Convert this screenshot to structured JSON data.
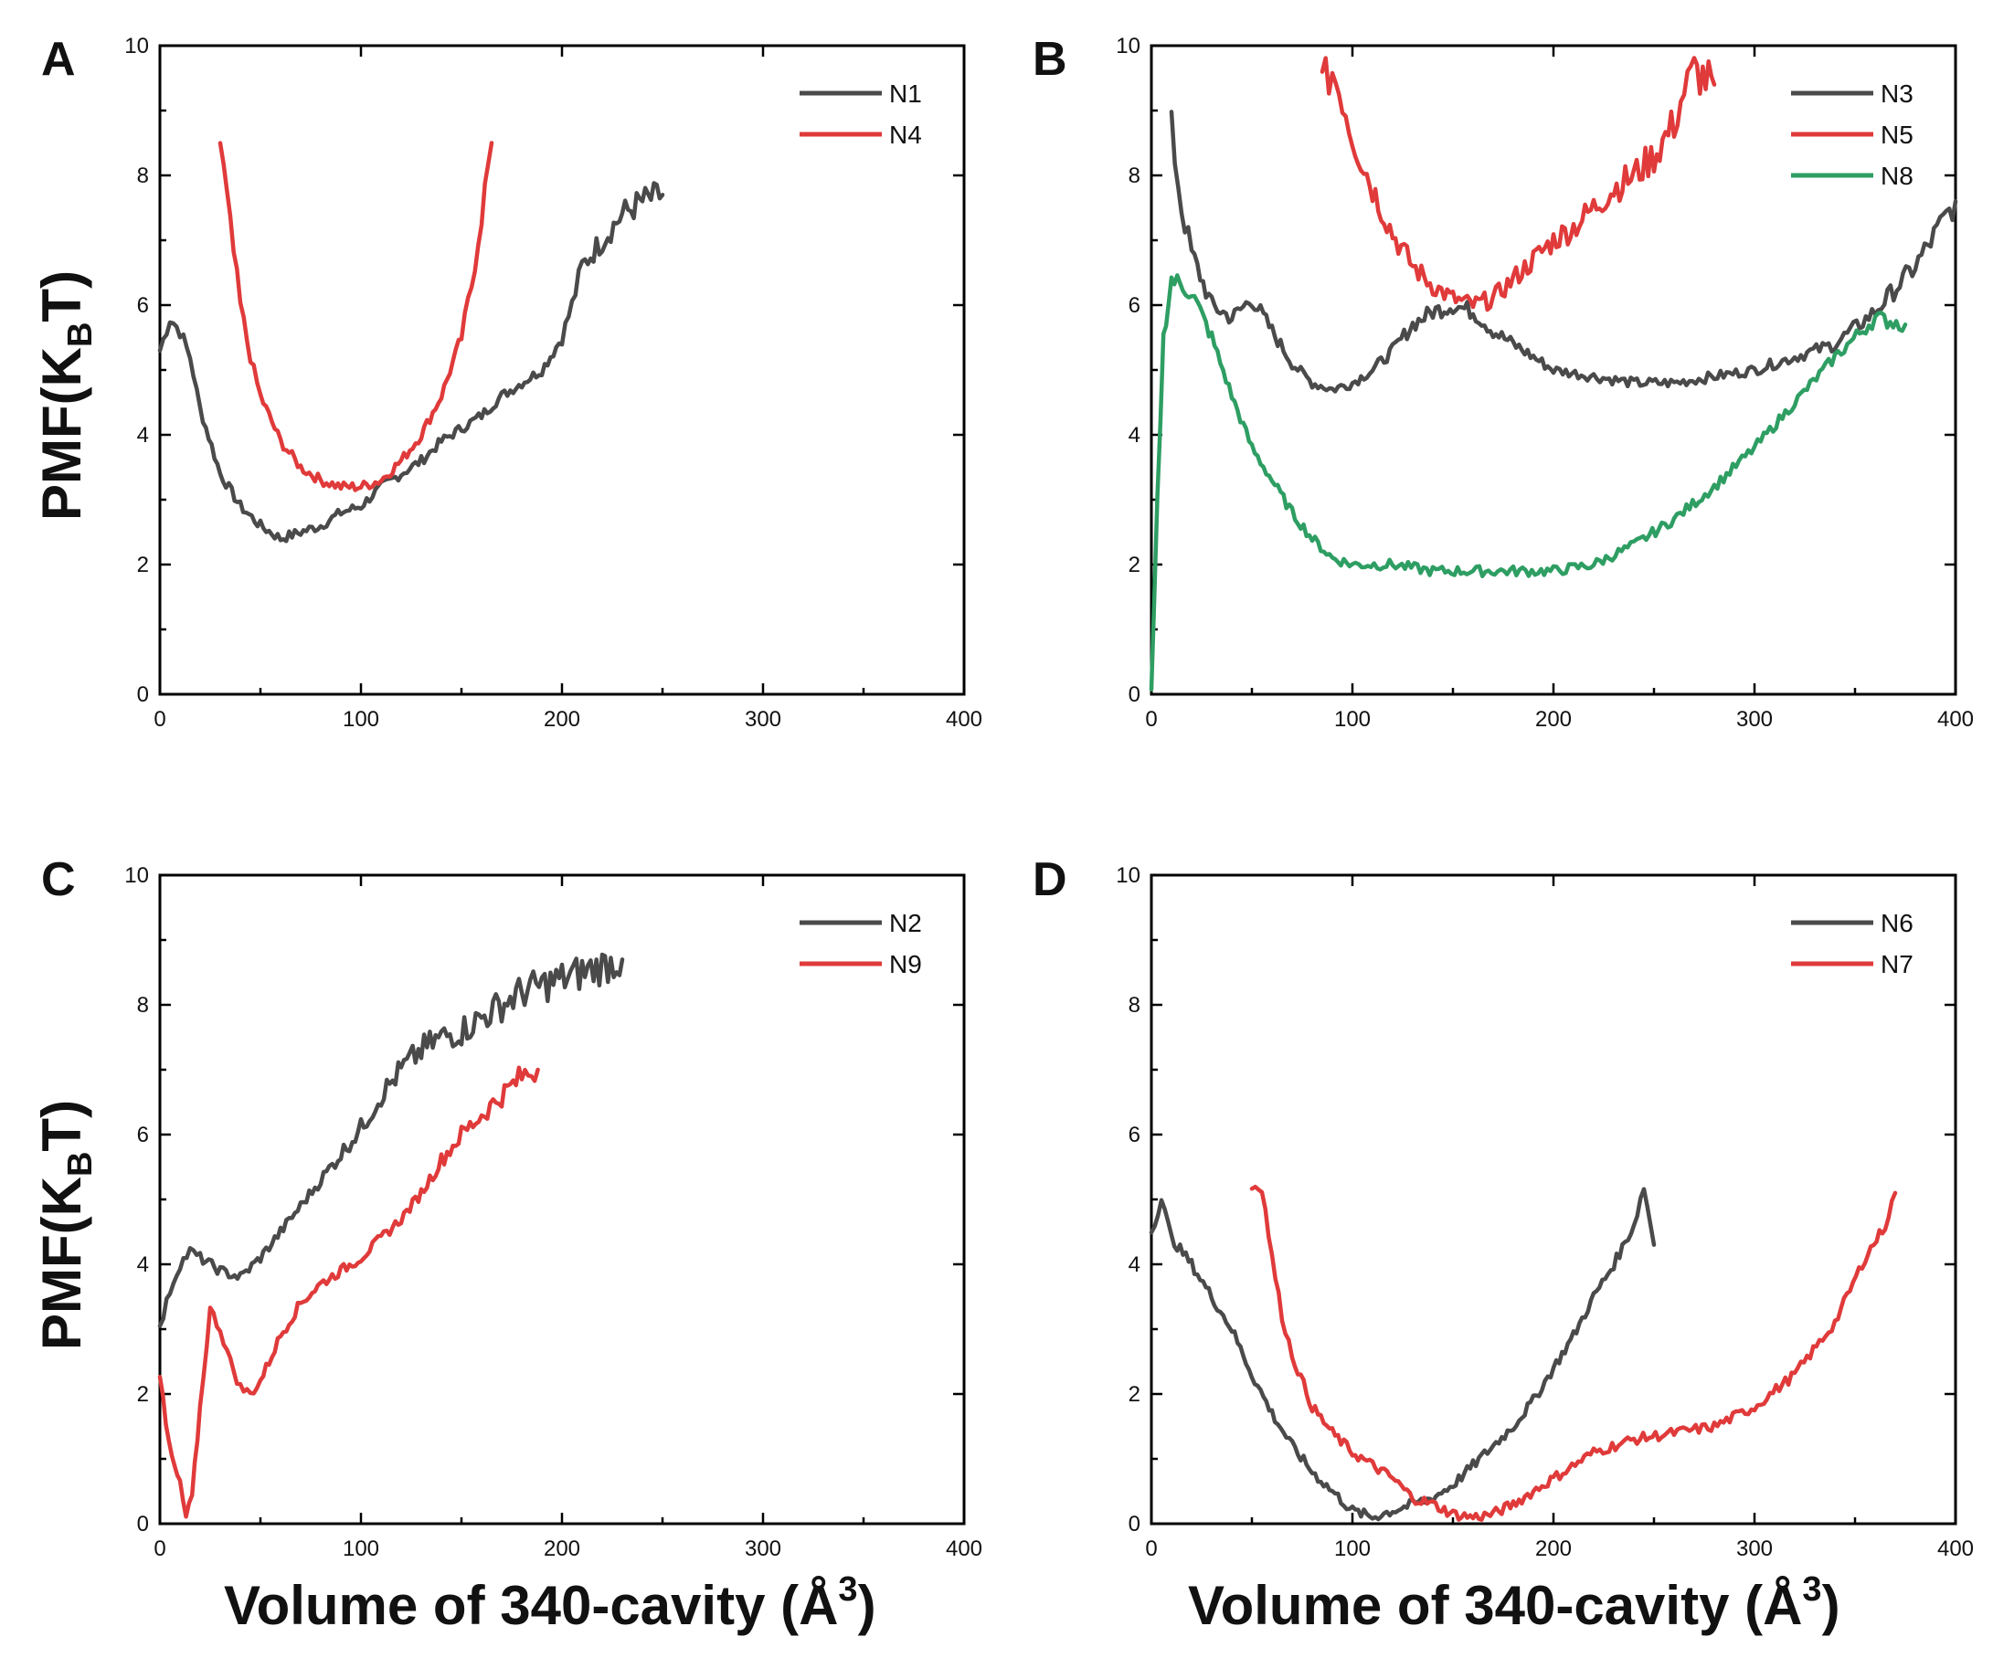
{
  "figure": {
    "ylabel_main": "PMF(K",
    "ylabel_sub": "B",
    "ylabel_end": "T)",
    "xlabel_main": "Volume of 340-cavity (Å",
    "xlabel_sup": "3",
    "xlabel_end": ")"
  },
  "colors": {
    "N1": "#4a4a4a",
    "N2": "#4a4a4a",
    "N3": "#4a4a4a",
    "N6": "#4a4a4a",
    "red": "#e03a3a",
    "green": "#2e9e63"
  },
  "chart_data": [
    {
      "panel": "A",
      "type": "line",
      "xlim": [
        0,
        400
      ],
      "ylim": [
        0,
        10
      ],
      "xticks": [
        0,
        100,
        200,
        300,
        400
      ],
      "yticks": [
        0,
        2,
        4,
        6,
        8,
        10
      ],
      "legend": "top-right",
      "series": [
        {
          "name": "N1",
          "color": "#4a4a4a",
          "x": [
            0,
            5,
            10,
            15,
            20,
            30,
            40,
            50,
            60,
            70,
            80,
            90,
            100,
            110,
            120,
            130,
            140,
            150,
            160,
            170,
            180,
            190,
            200,
            205,
            210,
            220,
            230,
            240,
            250
          ],
          "y": [
            5.3,
            5.8,
            5.6,
            5.2,
            4.4,
            3.4,
            2.9,
            2.6,
            2.4,
            2.5,
            2.6,
            2.8,
            2.9,
            3.2,
            3.4,
            3.6,
            3.9,
            4.1,
            4.3,
            4.6,
            4.8,
            5.0,
            5.5,
            6.0,
            6.6,
            7.0,
            7.4,
            7.6,
            7.7
          ]
        },
        {
          "name": "N4",
          "color": "#e03a3a",
          "x": [
            30,
            35,
            40,
            45,
            50,
            60,
            70,
            80,
            90,
            100,
            110,
            120,
            130,
            140,
            150,
            155,
            160,
            165
          ],
          "y": [
            8.5,
            7.2,
            6.0,
            5.2,
            4.6,
            3.9,
            3.5,
            3.3,
            3.2,
            3.2,
            3.3,
            3.6,
            4.0,
            4.6,
            5.5,
            6.3,
            7.4,
            8.5
          ]
        }
      ]
    },
    {
      "panel": "B",
      "type": "line",
      "xlim": [
        0,
        400
      ],
      "ylim": [
        0,
        10
      ],
      "xticks": [
        0,
        100,
        200,
        300,
        400
      ],
      "yticks": [
        0,
        2,
        4,
        6,
        8,
        10
      ],
      "legend": "top-right",
      "series": [
        {
          "name": "N3",
          "color": "#4a4a4a",
          "x": [
            10,
            15,
            20,
            30,
            40,
            50,
            60,
            70,
            80,
            90,
            100,
            110,
            120,
            130,
            140,
            150,
            160,
            170,
            180,
            190,
            200,
            220,
            240,
            260,
            280,
            300,
            320,
            340,
            360,
            380,
            400
          ],
          "y": [
            8.7,
            7.5,
            6.8,
            6.0,
            5.8,
            6.1,
            5.6,
            5.1,
            4.8,
            4.7,
            4.8,
            5.0,
            5.3,
            5.7,
            5.9,
            6.0,
            5.9,
            5.6,
            5.4,
            5.2,
            5.0,
            4.9,
            4.8,
            4.8,
            4.9,
            5.0,
            5.2,
            5.4,
            5.9,
            6.6,
            7.6
          ]
        },
        {
          "name": "N5",
          "color": "#e03a3a",
          "x": [
            85,
            90,
            95,
            100,
            110,
            120,
            130,
            140,
            150,
            160,
            170,
            180,
            190,
            200,
            210,
            220,
            230,
            240,
            250,
            260,
            265,
            270,
            280
          ],
          "y": [
            9.4,
            9.6,
            9.2,
            8.6,
            7.8,
            7.1,
            6.6,
            6.3,
            6.1,
            6.0,
            6.1,
            6.4,
            6.7,
            7.0,
            7.2,
            7.5,
            7.8,
            8.0,
            8.3,
            8.8,
            9.3,
            9.6,
            9.4
          ]
        },
        {
          "name": "N8",
          "color": "#2e9e63",
          "x": [
            0,
            3,
            6,
            10,
            20,
            30,
            40,
            50,
            60,
            70,
            80,
            90,
            100,
            120,
            140,
            160,
            180,
            200,
            220,
            240,
            260,
            280,
            300,
            320,
            340,
            360,
            375
          ],
          "y": [
            0.0,
            3.0,
            5.5,
            6.4,
            6.2,
            5.5,
            4.6,
            3.8,
            3.3,
            2.8,
            2.4,
            2.1,
            2.0,
            2.0,
            1.9,
            1.9,
            1.9,
            1.9,
            2.0,
            2.3,
            2.7,
            3.2,
            3.8,
            4.5,
            5.2,
            5.8,
            5.7
          ]
        }
      ]
    },
    {
      "panel": "C",
      "type": "line",
      "xlim": [
        0,
        400
      ],
      "ylim": [
        0,
        10
      ],
      "xticks": [
        0,
        100,
        200,
        300,
        400
      ],
      "yticks": [
        0,
        2,
        4,
        6,
        8,
        10
      ],
      "legend": "top-right",
      "series": [
        {
          "name": "N2",
          "color": "#4a4a4a",
          "x": [
            0,
            5,
            10,
            15,
            20,
            30,
            40,
            50,
            60,
            70,
            80,
            90,
            100,
            110,
            120,
            130,
            140,
            150,
            160,
            170,
            180,
            190,
            200,
            210,
            220,
            230
          ],
          "y": [
            3.0,
            3.6,
            4.0,
            4.2,
            4.1,
            3.9,
            3.8,
            4.1,
            4.5,
            4.9,
            5.3,
            5.7,
            6.1,
            6.6,
            7.0,
            7.3,
            7.5,
            7.6,
            7.8,
            8.0,
            8.2,
            8.3,
            8.4,
            8.5,
            8.6,
            8.7
          ]
        },
        {
          "name": "N9",
          "color": "#e03a3a",
          "x": [
            0,
            3,
            6,
            10,
            13,
            16,
            20,
            25,
            30,
            35,
            40,
            45,
            50,
            60,
            70,
            80,
            90,
            100,
            110,
            120,
            130,
            140,
            150,
            160,
            170,
            180,
            188
          ],
          "y": [
            2.3,
            1.5,
            1.0,
            0.6,
            0.1,
            0.4,
            1.8,
            3.3,
            3.0,
            2.5,
            2.1,
            2.0,
            2.2,
            2.9,
            3.4,
            3.7,
            3.9,
            4.1,
            4.4,
            4.7,
            5.1,
            5.6,
            6.0,
            6.3,
            6.6,
            6.9,
            7.0
          ]
        }
      ]
    },
    {
      "panel": "D",
      "type": "line",
      "xlim": [
        0,
        400
      ],
      "ylim": [
        0,
        10
      ],
      "xticks": [
        0,
        100,
        200,
        300,
        400
      ],
      "yticks": [
        0,
        2,
        4,
        6,
        8,
        10
      ],
      "legend": "top-right",
      "series": [
        {
          "name": "N6",
          "color": "#4a4a4a",
          "x": [
            0,
            5,
            10,
            20,
            30,
            40,
            50,
            60,
            70,
            80,
            90,
            100,
            110,
            120,
            130,
            140,
            150,
            160,
            170,
            180,
            190,
            200,
            210,
            220,
            230,
            240,
            245,
            250
          ],
          "y": [
            4.5,
            5.0,
            4.4,
            4.0,
            3.5,
            3.0,
            2.3,
            1.7,
            1.2,
            0.8,
            0.5,
            0.2,
            0.1,
            0.2,
            0.3,
            0.4,
            0.6,
            0.9,
            1.2,
            1.5,
            1.9,
            2.4,
            2.9,
            3.5,
            4.0,
            4.6,
            5.2,
            4.3
          ]
        },
        {
          "name": "N7",
          "color": "#e03a3a",
          "x": [
            50,
            55,
            60,
            65,
            70,
            80,
            90,
            100,
            110,
            120,
            130,
            140,
            150,
            160,
            170,
            180,
            190,
            200,
            220,
            240,
            260,
            280,
            300,
            320,
            340,
            355,
            365,
            370
          ],
          "y": [
            5.2,
            5.2,
            4.1,
            3.2,
            2.6,
            1.8,
            1.4,
            1.1,
            0.9,
            0.7,
            0.4,
            0.3,
            0.15,
            0.1,
            0.15,
            0.3,
            0.5,
            0.7,
            1.1,
            1.3,
            1.4,
            1.5,
            1.8,
            2.3,
            3.1,
            4.1,
            4.6,
            5.1
          ]
        }
      ]
    }
  ]
}
